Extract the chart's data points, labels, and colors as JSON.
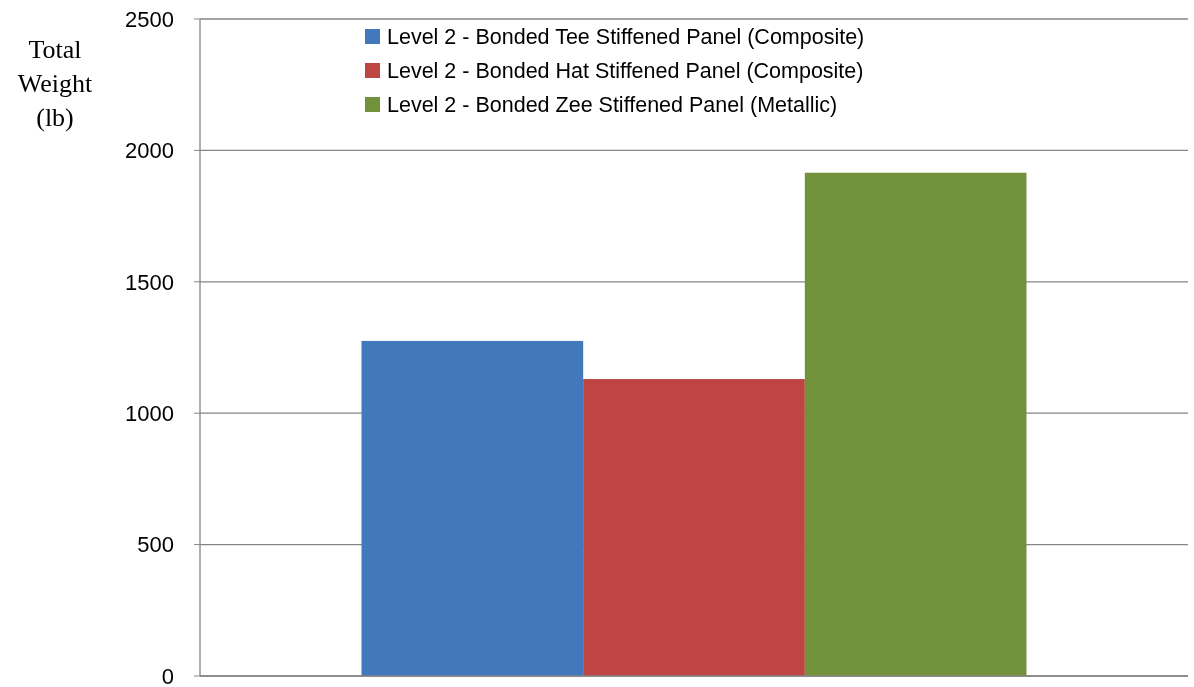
{
  "chart_data": {
    "type": "bar",
    "ylabel": "Total Weight (lb)",
    "categories": [
      null
    ],
    "series": [
      {
        "name": "Level 2 - Bonded Tee Stiffened Panel (Composite)",
        "color": "#4279bc",
        "values": [
          1275
        ]
      },
      {
        "name": "Level 2 - Bonded Hat Stiffened Panel (Composite)",
        "color": "#be4543",
        "values": [
          1130
        ]
      },
      {
        "name": "Level 2 - Bonded Zee Stiffened Panel (Metallic)",
        "color": "#71923a",
        "values": [
          1915
        ]
      }
    ],
    "ylim": [
      0,
      2500
    ],
    "yticks": [
      0,
      500,
      1000,
      1500,
      2000,
      2500
    ],
    "grid": "y",
    "legend": "top"
  }
}
